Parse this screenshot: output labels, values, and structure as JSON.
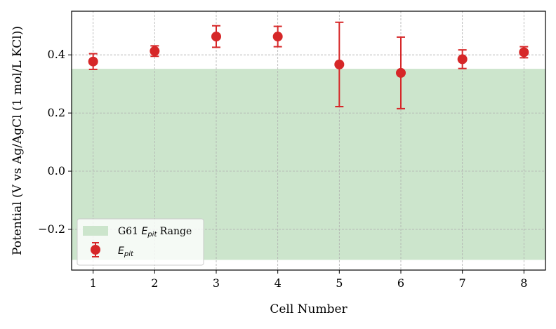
{
  "chart_data": {
    "type": "scatter",
    "title": "",
    "xlabel": "Cell Number",
    "ylabel": "Potential (V vs Ag/AgCl (1 mol/L KCl))",
    "xlim": [
      0.65,
      8.35
    ],
    "ylim": [
      -0.34,
      0.55
    ],
    "grid": true,
    "x_ticks": [
      "1",
      "2",
      "3",
      "4",
      "5",
      "6",
      "7",
      "8"
    ],
    "y_ticks": [
      "−0.2",
      "0.0",
      "0.2",
      "0.4"
    ],
    "y_tick_values": [
      -0.2,
      0.0,
      0.2,
      0.4
    ],
    "band": {
      "name": "G61 E_pit Range",
      "label_prefix": "G61 ",
      "label_symbol": "E",
      "label_sub": "pit",
      "label_suffix": " Range",
      "ymin": -0.305,
      "ymax": 0.352,
      "color": "#cce5cc"
    },
    "series": [
      {
        "name": "E_pit",
        "label_symbol": "E",
        "label_sub": "pit",
        "color": "#d62728",
        "x": [
          1,
          2,
          3,
          4,
          5,
          6,
          7,
          8
        ],
        "y": [
          0.377,
          0.413,
          0.463,
          0.463,
          0.367,
          0.338,
          0.385,
          0.409
        ],
        "err": [
          0.027,
          0.018,
          0.037,
          0.035,
          0.145,
          0.123,
          0.032,
          0.019
        ]
      }
    ],
    "legend_position": "lower-left"
  }
}
